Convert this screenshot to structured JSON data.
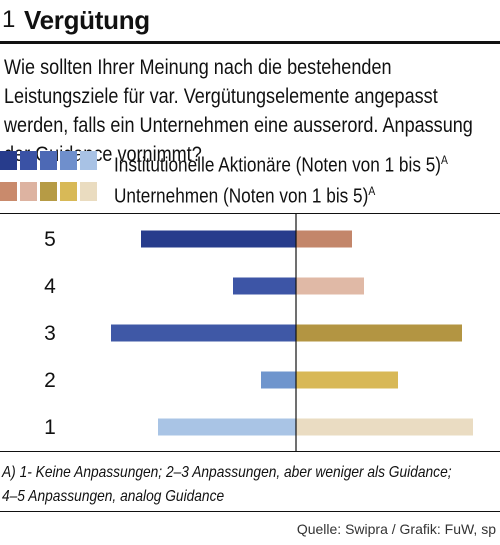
{
  "header": {
    "number": "1",
    "title": "Vergütung"
  },
  "question": "Wie sollten Ihrer Meinung nach die bestehenden Leistungsziele für var. Vergütungselemente angepasst werden, falls ein Unternehmen eine ausserord. Anpassung der Guidance vornimmt?",
  "legend": [
    {
      "label": "Institutionelle Aktionäre (Noten von 1 bis 5)",
      "sup": "A",
      "colors": [
        "#273c8c",
        "#3a52a5",
        "#4d69b5",
        "#6f8fcc",
        "#a8c2e5"
      ]
    },
    {
      "label": "Unternehmen (Noten von 1 bis 5)",
      "sup": "A",
      "colors": [
        "#c98a6c",
        "#ddb3a1",
        "#b69b45",
        "#d8b957",
        "#eadcc0"
      ]
    }
  ],
  "chart_data": {
    "type": "bar",
    "orientation": "diverging-horizontal",
    "categories": [
      "5",
      "4",
      "3",
      "2",
      "1"
    ],
    "series": [
      {
        "name": "Institutionelle Aktionäre",
        "values": [
          155,
          63,
          185,
          35,
          138
        ],
        "colors": [
          "#273c8c",
          "#3d55a6",
          "#3f58a6",
          "#6f95cd",
          "#a9c4e5"
        ]
      },
      {
        "name": "Unternehmen",
        "values": [
          56,
          68,
          166,
          102,
          177
        ],
        "colors": [
          "#c3866a",
          "#e0b9a6",
          "#b39542",
          "#d8b856",
          "#eadcc2"
        ]
      }
    ]
  },
  "footnote": "A) 1- Keine Anpassungen; 2–3 Anpassungen, aber weniger als Guidance;\n4–5 Anpassungen, analog Guidance",
  "source": "Quelle: Swipra / Grafik: FuW, sp"
}
